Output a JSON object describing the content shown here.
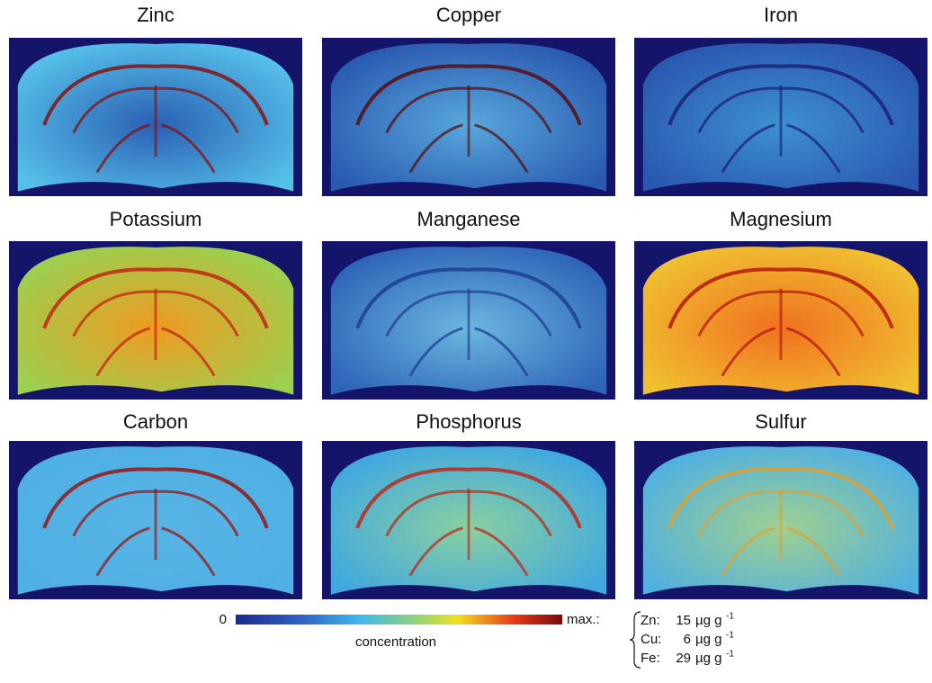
{
  "panels": [
    {
      "title": "Zinc"
    },
    {
      "title": "Copper"
    },
    {
      "title": "Iron"
    },
    {
      "title": "Potassium"
    },
    {
      "title": "Manganese"
    },
    {
      "title": "Magnesium"
    },
    {
      "title": "Carbon"
    },
    {
      "title": "Phosphorus"
    },
    {
      "title": "Sulfur"
    }
  ],
  "colorbar": {
    "min_label": "0",
    "max_label": "max.:",
    "label": "concentration"
  },
  "max_values": [
    {
      "element": "Zn:",
      "value": 15,
      "unit": "µg g",
      "exponent": -1
    },
    {
      "element": "Cu:",
      "value": 6,
      "unit": "µg g",
      "exponent": -1
    },
    {
      "element": "Fe:",
      "value": 29,
      "unit": "µg g",
      "exponent": -1
    }
  ]
}
